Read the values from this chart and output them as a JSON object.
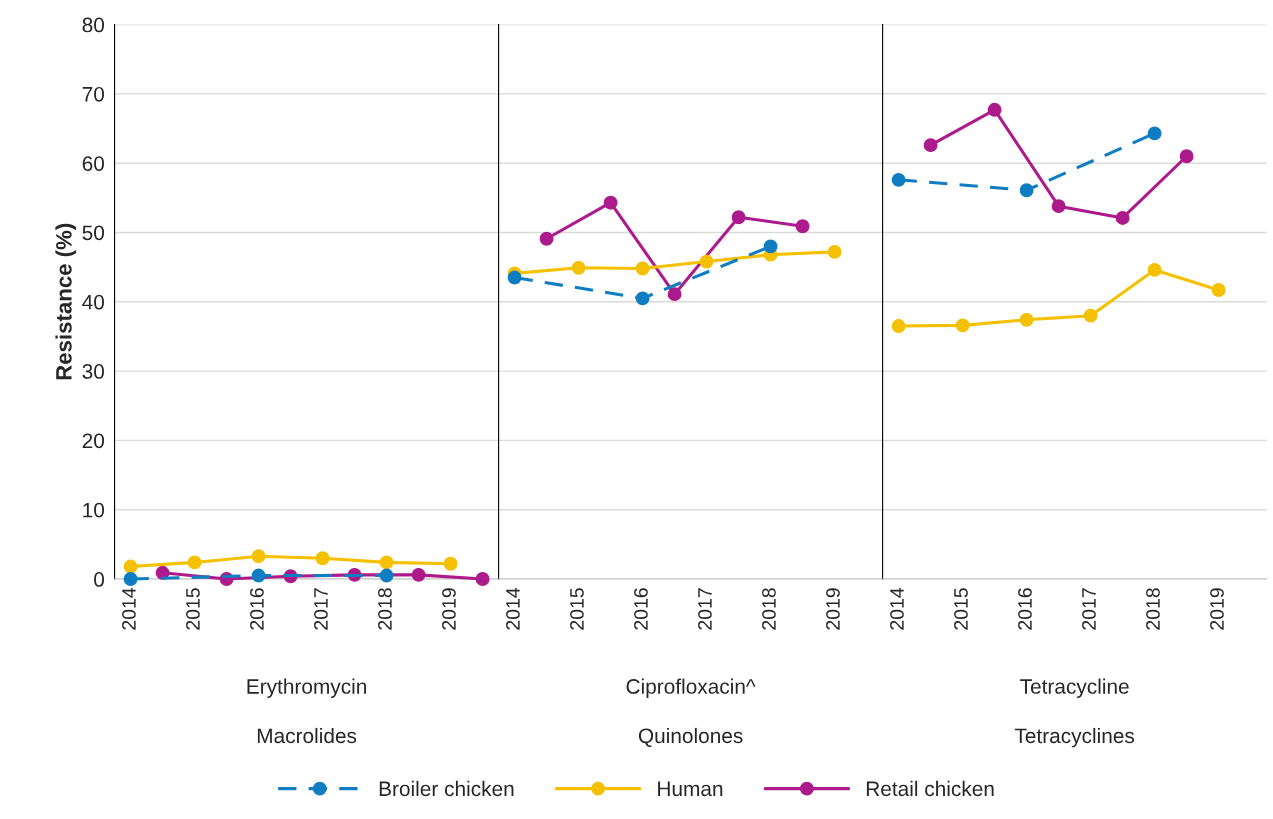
{
  "chart_data": [
    {
      "type": "line",
      "title": "Erythromycin",
      "subtitle": "Macrolides",
      "ylabel": "Resistance (%)",
      "categories": [
        "2014",
        null,
        "2015",
        null,
        "2016",
        null,
        "2017",
        null,
        "2018",
        null,
        "2019",
        null
      ],
      "ylim": [
        0,
        80
      ],
      "yticks": [
        0,
        10,
        20,
        30,
        40,
        50,
        60,
        70,
        80
      ],
      "grid": "y",
      "marker": "circle",
      "legend": "bottom",
      "series": [
        {
          "name": "Broiler chicken",
          "color": "#0f7dc2",
          "line_style": "dashed",
          "values": [
            0,
            null,
            null,
            null,
            0.5,
            null,
            null,
            null,
            0.5,
            null,
            null,
            null
          ]
        },
        {
          "name": "Human",
          "color": "#f5c000",
          "line_style": "solid",
          "values": [
            1.8,
            null,
            2.4,
            null,
            3.3,
            null,
            3.0,
            null,
            2.4,
            null,
            2.2,
            null
          ]
        },
        {
          "name": "Retail chicken",
          "color": "#ad1a8b",
          "line_style": "solid",
          "values": [
            null,
            0.9,
            null,
            0,
            null,
            0.4,
            null,
            0.6,
            null,
            0.6,
            null,
            0
          ]
        }
      ]
    },
    {
      "type": "line",
      "title": "Ciprofloxacin^",
      "subtitle": "Quinolones",
      "categories": [
        "2014",
        null,
        "2015",
        null,
        "2016",
        null,
        "2017",
        null,
        "2018",
        null,
        "2019",
        null
      ],
      "ylim": [
        0,
        80
      ],
      "yticks": [
        0,
        10,
        20,
        30,
        40,
        50,
        60,
        70,
        80
      ],
      "grid": "y",
      "marker": "circle",
      "tick_labels": "x",
      "series": [
        {
          "color": "#0f7dc2",
          "line_style": "dashed",
          "values": [
            43.5,
            null,
            null,
            null,
            40.5,
            null,
            null,
            null,
            48.0,
            null,
            null,
            null
          ]
        },
        {
          "color": "#f5c000",
          "line_style": "solid",
          "values": [
            44.1,
            null,
            44.9,
            null,
            44.8,
            null,
            45.8,
            null,
            46.8,
            null,
            47.2,
            null
          ]
        },
        {
          "color": "#ad1a8b",
          "line_style": "solid",
          "values": [
            null,
            49.1,
            null,
            54.3,
            null,
            41.1,
            null,
            52.2,
            null,
            50.9,
            null,
            null
          ]
        }
      ]
    },
    {
      "type": "line",
      "title": "Tetracycline",
      "subtitle": "Tetracyclines",
      "categories": [
        "2014",
        null,
        "2015",
        null,
        "2016",
        null,
        "2017",
        null,
        "2018",
        null,
        "2019",
        null
      ],
      "ylim": [
        0,
        80
      ],
      "yticks": [
        0,
        10,
        20,
        30,
        40,
        50,
        60,
        70,
        80
      ],
      "grid": "y",
      "marker": "circle",
      "tick_labels": "x",
      "series": [
        {
          "color": "#0f7dc2",
          "line_style": "dashed",
          "values": [
            57.6,
            null,
            null,
            null,
            56.1,
            null,
            null,
            null,
            64.3,
            null,
            null,
            null
          ]
        },
        {
          "color": "#f5c000",
          "line_style": "solid",
          "values": [
            36.5,
            null,
            36.6,
            null,
            37.4,
            null,
            38.0,
            null,
            44.6,
            null,
            41.7,
            null
          ]
        },
        {
          "color": "#ad1a8b",
          "line_style": "solid",
          "values": [
            null,
            62.6,
            null,
            67.7,
            null,
            53.8,
            null,
            52.1,
            null,
            61.0,
            null,
            null
          ]
        }
      ]
    }
  ]
}
